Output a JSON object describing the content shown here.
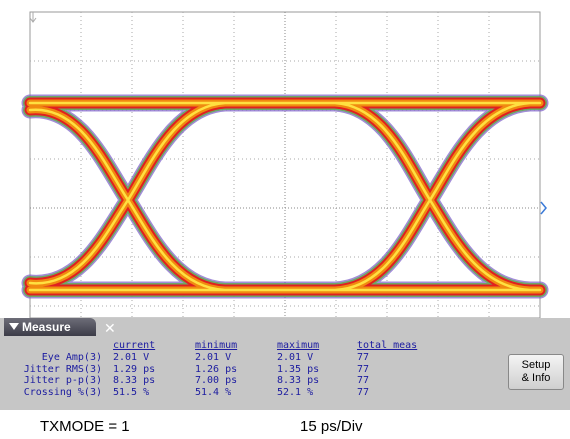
{
  "measure_panel": {
    "title": "Measure",
    "columns": [
      "current",
      "minimum",
      "maximum",
      "total meas"
    ],
    "rows": [
      {
        "label": "Eye Amp(3)",
        "values": [
          "2.01 V",
          "2.01 V",
          "2.01 V",
          "77"
        ]
      },
      {
        "label": "Jitter RMS(3)",
        "values": [
          "1.29 ps",
          "1.26 ps",
          "1.35 ps",
          "77"
        ]
      },
      {
        "label": "Jitter p-p(3)",
        "values": [
          "8.33 ps",
          "7.00 ps",
          "8.33 ps",
          "77"
        ]
      },
      {
        "label": "Crossing %(3)",
        "values": [
          "51.5 %",
          "51.4 %",
          "52.1 %",
          "77"
        ]
      }
    ]
  },
  "button": [
    "Setup",
    "& Info"
  ],
  "footer": {
    "mode": "TXMODE = 1",
    "timebase": "15 ps/Div"
  }
}
